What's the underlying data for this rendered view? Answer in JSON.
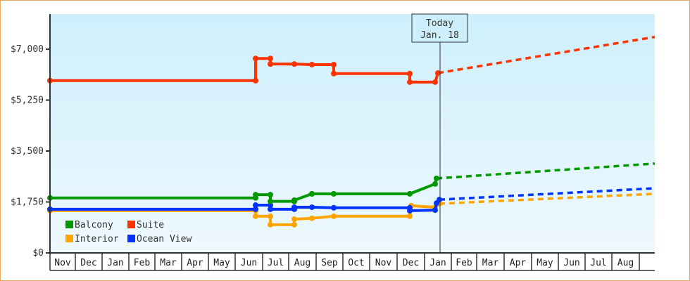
{
  "chart_data": {
    "type": "line",
    "title": "",
    "xlabel": "",
    "ylabel": "",
    "ylim": [
      0,
      8000
    ],
    "y_ticks": [
      "$0",
      "$1,750",
      "$3,500",
      "$5,250",
      "$7,000"
    ],
    "y_tick_values": [
      0,
      1750,
      3500,
      5250,
      7000
    ],
    "x_tick_labels": [
      "Nov",
      "Dec",
      "Jan",
      "Feb",
      "Mar",
      "Apr",
      "May",
      "Jun",
      "Jul",
      "Aug",
      "Sep",
      "Oct",
      "Nov",
      "Dec",
      "Jan",
      "Feb",
      "Mar",
      "Apr",
      "May",
      "Jun",
      "Jul",
      "Aug"
    ],
    "grid": false,
    "legend_position": "lower-left inside",
    "annotation": {
      "line1": "Today",
      "line2": "Jan. 18"
    },
    "series": [
      {
        "name": "Suite",
        "color": "#ff3300",
        "historical": [
          {
            "date": "Nov",
            "value": 5920
          },
          {
            "date": "Jun (late)",
            "value": 5920
          },
          {
            "date": "Jun (late)",
            "value": 6680
          },
          {
            "date": "Jul",
            "value": 6680
          },
          {
            "date": "Jul",
            "value": 6490
          },
          {
            "date": "Aug",
            "value": 6490
          },
          {
            "date": "Aug (late)",
            "value": 6470
          },
          {
            "date": "Sep",
            "value": 6470
          },
          {
            "date": "Sep",
            "value": 6160
          },
          {
            "date": "Dec",
            "value": 6160
          },
          {
            "date": "Dec",
            "value": 5870
          },
          {
            "date": "Jan",
            "value": 5870
          },
          {
            "date": "Jan 18",
            "value": 6180
          }
        ],
        "forecast_end": {
          "date": "Aug+",
          "value": 7420
        }
      },
      {
        "name": "Balcony",
        "color": "#009900",
        "historical": [
          {
            "date": "Nov",
            "value": 1890
          },
          {
            "date": "Jun (late)",
            "value": 1890
          },
          {
            "date": "Jun (late)",
            "value": 2000
          },
          {
            "date": "Jul",
            "value": 2000
          },
          {
            "date": "Jul",
            "value": 1770
          },
          {
            "date": "Aug",
            "value": 1770
          },
          {
            "date": "Aug (late)",
            "value": 1810
          },
          {
            "date": "Aug (late)",
            "value": 2030
          },
          {
            "date": "Sep",
            "value": 2030
          },
          {
            "date": "Dec",
            "value": 2030
          },
          {
            "date": "Jan",
            "value": 2030
          },
          {
            "date": "Jan",
            "value": 2370
          },
          {
            "date": "Jan 18",
            "value": 2560
          }
        ],
        "forecast_end": {
          "date": "Aug+",
          "value": 3070
        }
      },
      {
        "name": "Ocean View",
        "color": "#0033ff",
        "historical": [
          {
            "date": "Nov",
            "value": 1500
          },
          {
            "date": "Jun (late)",
            "value": 1500
          },
          {
            "date": "Jun (late)",
            "value": 1640
          },
          {
            "date": "Jul",
            "value": 1640
          },
          {
            "date": "Jul",
            "value": 1500
          },
          {
            "date": "Aug",
            "value": 1500
          },
          {
            "date": "Aug",
            "value": 1570
          },
          {
            "date": "Aug (late)",
            "value": 1570
          },
          {
            "date": "Sep",
            "value": 1550
          },
          {
            "date": "Dec",
            "value": 1550
          },
          {
            "date": "Dec",
            "value": 1450
          },
          {
            "date": "Jan",
            "value": 1470
          },
          {
            "date": "Jan",
            "value": 1710
          },
          {
            "date": "Jan 18",
            "value": 1830
          }
        ],
        "forecast_end": {
          "date": "Aug+",
          "value": 2220
        }
      },
      {
        "name": "Interior",
        "color": "#ffa500",
        "historical": [
          {
            "date": "Nov",
            "value": 1450
          },
          {
            "date": "Jun (late)",
            "value": 1450
          },
          {
            "date": "Jun (late)",
            "value": 1260
          },
          {
            "date": "Jul",
            "value": 1260
          },
          {
            "date": "Jul",
            "value": 970
          },
          {
            "date": "Aug",
            "value": 970
          },
          {
            "date": "Aug",
            "value": 1160
          },
          {
            "date": "Aug (late)",
            "value": 1190
          },
          {
            "date": "Sep",
            "value": 1260
          },
          {
            "date": "Dec",
            "value": 1260
          },
          {
            "date": "Dec",
            "value": 1620
          },
          {
            "date": "Jan",
            "value": 1570
          },
          {
            "date": "Jan 18",
            "value": 1690
          }
        ],
        "forecast_end": {
          "date": "Aug+",
          "value": 2030
        }
      }
    ]
  },
  "legend": [
    {
      "label": "Balcony",
      "color": "#009900"
    },
    {
      "label": "Suite",
      "color": "#ff3300"
    },
    {
      "label": "Interior",
      "color": "#ffa500"
    },
    {
      "label": "Ocean View",
      "color": "#0033ff"
    }
  ],
  "colors": {
    "frame_border": "#e8a85e",
    "plot_bg_top": "#cdeffc",
    "plot_bg_bottom": "#eef9fe",
    "axis": "#333333"
  }
}
